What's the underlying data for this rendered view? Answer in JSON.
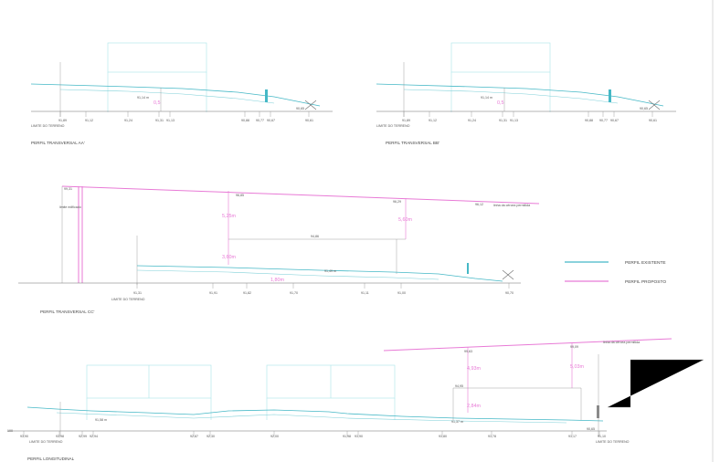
{
  "colors": {
    "existing": "#45b8c6",
    "proposed": "#e87ad6",
    "structure": "#a9e4ea"
  },
  "legend": {
    "existing_label": "PERFIL EXISTENTE",
    "proposed_label": "PERFIL PROPOSTO"
  },
  "profile_aa": {
    "title": "PERFIL TRANSVERSAL AA'",
    "limit_label": "LIMITE DO TERRENO",
    "level_label": "91,14 m",
    "marker": "0,5",
    "end_label": "90,65",
    "stations": [
      "91,89",
      "91,12",
      "91,24",
      "91,31",
      "91,13",
      "90,88",
      "90,77",
      "90,67",
      "90,61"
    ]
  },
  "profile_bb": {
    "title": "PERFIL TRANSVERSAL BB'",
    "limit_label": "LIMITE DO TERRENO",
    "level_label": "91,14 m",
    "marker": "0,5",
    "end_label": "90,65",
    "stations": [
      "91,89",
      "91,12",
      "91,24",
      "91,31",
      "91,13",
      "90,88",
      "90,77",
      "90,67",
      "90,61"
    ]
  },
  "profile_cc": {
    "title": "PERFIL TRANSVERSAL CC'",
    "limit_label": "LIMITE DO TERRENO",
    "top_left_label": "99,31",
    "left_side_label": "limite edificado",
    "top_mid_label": "96,85",
    "top_right_label": "96,29",
    "top_end_label": "96,12",
    "line_label": "linha da cércea permitida",
    "dim_big_1": "5,25m",
    "dim_big_2": "5,60m",
    "dim_small_1": "3,60m",
    "dim_small_2": "1,80m",
    "mid_label": "94,86",
    "ground_label": "91,49 m",
    "stations": [
      "91,31",
      "91,91",
      "91,82",
      "91,70",
      "91,11",
      "91,00",
      "90,70"
    ]
  },
  "profile_long": {
    "title": "PERFIL LONGITUDINAL",
    "limit_left": "LIMITE DO TERRENO",
    "limit_right": "LIMITE DO TERRENO",
    "left_label": "100",
    "top_left_label": "99,63",
    "top_right_label": "99,09",
    "line_label": "linha da cércea permitida",
    "dim_big_1": "4,93m",
    "dim_big_2": "5,03m",
    "dim_small": "2,84m",
    "mid_label": "94,95",
    "ground_left_label": "91,58 m",
    "ground_right_label": "91,37 m",
    "right_end_label": "90,65",
    "stations": [
      "93,90",
      "93,98",
      "92,99",
      "92,94",
      "92,87",
      "92,30",
      "92,00",
      "91,98",
      "91,90",
      "91,80",
      "91,78",
      "91,17",
      "91,10"
    ]
  }
}
